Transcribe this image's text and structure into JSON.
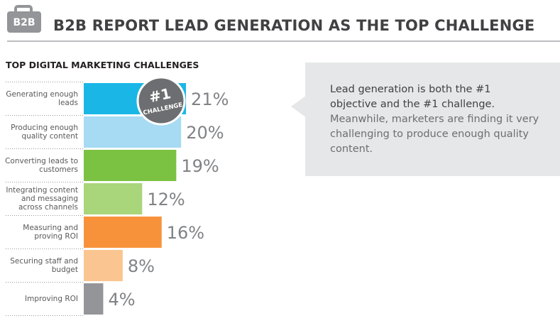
{
  "header": {
    "icon_text": "B2B",
    "title": "B2B REPORT LEAD GENERATION AS THE TOP CHALLENGE"
  },
  "chart_data": {
    "type": "bar",
    "orientation": "horizontal",
    "title": "TOP DIGITAL MARKETING CHALLENGES",
    "categories": [
      "Generating enough leads",
      "Producing enough quality content",
      "Converting leads to customers",
      "Integrating content and messaging across channels",
      "Measuring and proving ROI",
      "Securing staff and budget",
      "Improving ROI"
    ],
    "values": [
      21,
      20,
      19,
      12,
      16,
      8,
      4
    ],
    "value_labels": [
      "21%",
      "20%",
      "19%",
      "12%",
      "16%",
      "8%",
      "4%"
    ],
    "colors": [
      "#1ab7e6",
      "#a7daf3",
      "#7cc242",
      "#a9d57b",
      "#f7923a",
      "#fbc592",
      "#939598"
    ],
    "badge": {
      "line1": "#1",
      "line2": "CHALLENGE"
    }
  },
  "callout": {
    "strong": "Lead generation is both the #1 objective and the #1 challenge.",
    "text": "Meanwhile, marketers are finding it very challenging to produce enough quality content."
  }
}
